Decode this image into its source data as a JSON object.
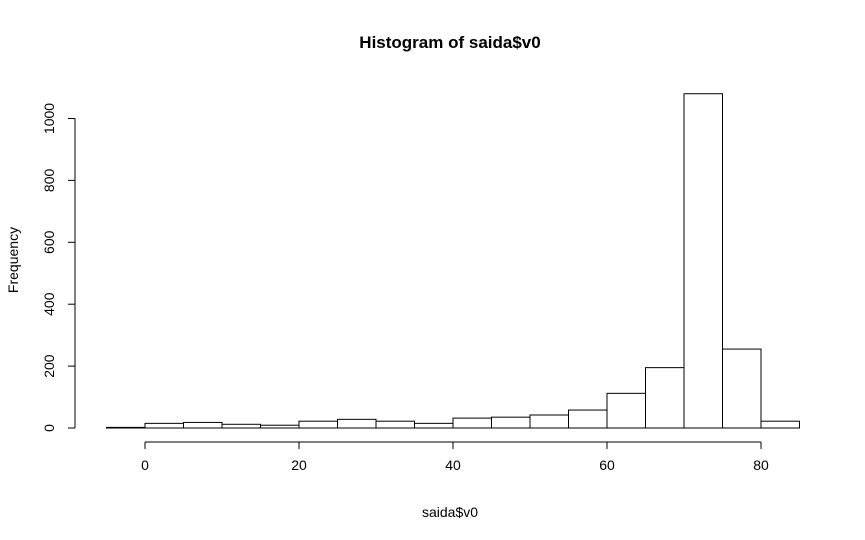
{
  "chart_data": {
    "type": "bar",
    "title": "Histogram of saida$v0",
    "xlabel": "saida$v0",
    "ylabel": "Frequency",
    "bin_width": 5,
    "bins": [
      {
        "from": -5,
        "to": 0,
        "count": 2
      },
      {
        "from": 0,
        "to": 5,
        "count": 15
      },
      {
        "from": 5,
        "to": 10,
        "count": 18
      },
      {
        "from": 10,
        "to": 15,
        "count": 12
      },
      {
        "from": 15,
        "to": 20,
        "count": 9
      },
      {
        "from": 20,
        "to": 25,
        "count": 22
      },
      {
        "from": 25,
        "to": 30,
        "count": 28
      },
      {
        "from": 30,
        "to": 35,
        "count": 22
      },
      {
        "from": 35,
        "to": 40,
        "count": 15
      },
      {
        "from": 40,
        "to": 45,
        "count": 32
      },
      {
        "from": 45,
        "to": 50,
        "count": 35
      },
      {
        "from": 50,
        "to": 55,
        "count": 42
      },
      {
        "from": 55,
        "to": 60,
        "count": 58
      },
      {
        "from": 60,
        "to": 65,
        "count": 112
      },
      {
        "from": 65,
        "to": 70,
        "count": 195
      },
      {
        "from": 70,
        "to": 75,
        "count": 1080
      },
      {
        "from": 75,
        "to": 80,
        "count": 255
      },
      {
        "from": 80,
        "to": 85,
        "count": 22
      }
    ],
    "xticks": [
      0,
      20,
      40,
      60,
      80
    ],
    "yticks": [
      0,
      200,
      400,
      600,
      800,
      1000
    ],
    "xlim": [
      -5,
      85
    ],
    "ylim": [
      0,
      1080
    ],
    "grid": false,
    "legend": "none"
  }
}
